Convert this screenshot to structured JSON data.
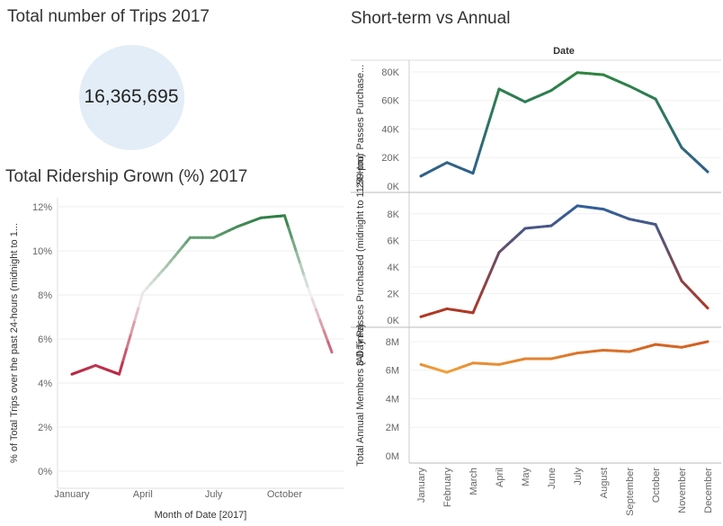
{
  "kpi": {
    "title": "Total number of Trips 2017",
    "value": "16,365,695"
  },
  "chart_data": [
    {
      "id": "ridership",
      "type": "line",
      "title": "Total Ridership Grown (%) 2017",
      "xlabel": "Month of Date [2017]",
      "ylabel": "% of Total Trips over the past 24-hours (midnight to 1...",
      "categories": [
        "January",
        "February",
        "March",
        "April",
        "May",
        "June",
        "July",
        "August",
        "September",
        "October",
        "November",
        "December"
      ],
      "x_tick_labels": [
        "January",
        "April",
        "July",
        "October"
      ],
      "values": [
        4.4,
        4.8,
        4.4,
        8.1,
        9.3,
        10.6,
        10.6,
        11.1,
        11.5,
        11.6,
        8.3,
        5.4
      ],
      "ylim": [
        0,
        12
      ],
      "yticks": [
        "0%",
        "2%",
        "4%",
        "6%",
        "8%",
        "10%",
        "12%"
      ],
      "colors": {
        "low": "#b8213f",
        "mid": "#f2f2f2",
        "high": "#2e7d42"
      }
    },
    {
      "id": "short_vs_annual",
      "type": "line",
      "title": "Short-term vs Annual",
      "column_header": "Date",
      "categories": [
        "January",
        "February",
        "March",
        "April",
        "May",
        "June",
        "July",
        "August",
        "September",
        "October",
        "November",
        "December"
      ],
      "panels": [
        {
          "name": "24-Hour Passes Purchase...",
          "values": [
            7000,
            16500,
            9000,
            68000,
            59000,
            67000,
            79500,
            78000,
            70000,
            61000,
            27000,
            10000
          ],
          "ylim": [
            0,
            85000
          ],
          "yticks": [
            "0K",
            "20K",
            "40K",
            "60K",
            "80K"
          ],
          "colors": {
            "low": "#2f5f8f",
            "high": "#2e8540"
          }
        },
        {
          "name": "3-Day Passes Purchased (midnight to 11:59 pm)",
          "values": [
            250,
            850,
            550,
            5100,
            6900,
            7100,
            8600,
            8350,
            7600,
            7200,
            2950,
            900
          ],
          "ylim": [
            0,
            9000
          ],
          "yticks": [
            "0K",
            "2K",
            "4K",
            "6K",
            "8K"
          ],
          "colors": {
            "low": "#b5371f",
            "high": "#2f5f9c"
          }
        },
        {
          "name": "Total Annual Members (All Time)",
          "values": [
            6400000,
            5850000,
            6500000,
            6400000,
            6800000,
            6800000,
            7200000,
            7400000,
            7300000,
            7800000,
            7600000,
            8000000
          ],
          "ylim": [
            0,
            8500000
          ],
          "yticks": [
            "0M",
            "2M",
            "4M",
            "6M",
            "8M"
          ],
          "colors": {
            "low": "#f2a33a",
            "high": "#cf5a22"
          }
        }
      ]
    }
  ]
}
